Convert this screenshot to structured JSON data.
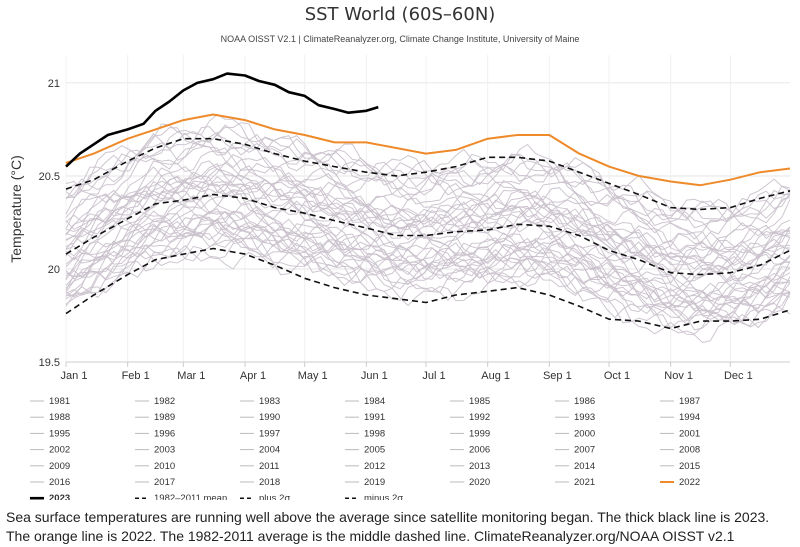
{
  "chart_data": {
    "type": "line",
    "title": "SST World (60S–60N)",
    "subtitle": "NOAA OISST V2.1 | ClimateReanalyzer.org, Climate Change Institute, University of Maine",
    "xlabel": "",
    "ylabel": "Temperature (°C)",
    "ylim": [
      19.5,
      21.15
    ],
    "yticks": [
      "19.5",
      "20",
      "20.5",
      "21"
    ],
    "ytick_values": [
      19.5,
      20,
      20.5,
      21
    ],
    "xlim": [
      1,
      365
    ],
    "xticks": [
      "Jan 1",
      "Feb 1",
      "Mar 1",
      "Apr 1",
      "May 1",
      "Jun 1",
      "Jul 1",
      "Aug 1",
      "Sep 1",
      "Oct 1",
      "Nov 1",
      "Dec 1"
    ],
    "xtick_days": [
      1,
      32,
      60,
      91,
      121,
      152,
      182,
      213,
      244,
      274,
      305,
      335
    ],
    "grid": "horizontal",
    "background_years": [
      "1981",
      "1982",
      "1983",
      "1984",
      "1985",
      "1986",
      "1987",
      "1988",
      "1989",
      "1990",
      "1991",
      "1992",
      "1993",
      "1994",
      "1995",
      "1996",
      "1997",
      "1998",
      "1999",
      "2000",
      "2001",
      "2002",
      "2003",
      "2004",
      "2005",
      "2006",
      "2007",
      "2008",
      "2009",
      "2010",
      "2011",
      "2012",
      "2013",
      "2014",
      "2015",
      "2016",
      "2017",
      "2018",
      "2019",
      "2020",
      "2021"
    ],
    "background_offsets": [
      -0.3,
      -0.28,
      -0.26,
      -0.22,
      -0.25,
      -0.2,
      -0.18,
      -0.16,
      -0.2,
      -0.14,
      -0.15,
      -0.17,
      -0.12,
      -0.13,
      -0.1,
      -0.11,
      -0.03,
      0.02,
      -0.08,
      -0.07,
      0.0,
      0.05,
      0.07,
      0.06,
      0.09,
      0.08,
      0.05,
      0.06,
      0.12,
      0.16,
      0.1,
      0.14,
      0.18,
      0.22,
      0.28,
      0.35,
      0.3,
      0.27,
      0.33,
      0.36,
      0.3
    ],
    "series": [
      {
        "name": "1982-2011 mean",
        "style": "dashed",
        "x": [
          1,
          15,
          32,
          46,
          60,
          75,
          91,
          106,
          121,
          136,
          152,
          167,
          182,
          197,
          213,
          228,
          244,
          259,
          274,
          289,
          305,
          320,
          335,
          350,
          365
        ],
        "values": [
          20.08,
          20.17,
          20.27,
          20.35,
          20.37,
          20.4,
          20.38,
          20.33,
          20.3,
          20.26,
          20.22,
          20.18,
          20.18,
          20.2,
          20.21,
          20.24,
          20.23,
          20.18,
          20.1,
          20.05,
          19.98,
          19.97,
          19.98,
          20.02,
          20.1
        ]
      },
      {
        "name": "plus 2σ",
        "style": "dashed",
        "x": [
          1,
          15,
          32,
          46,
          60,
          75,
          91,
          106,
          121,
          136,
          152,
          167,
          182,
          197,
          213,
          228,
          244,
          259,
          274,
          289,
          305,
          320,
          335,
          350,
          365
        ],
        "values": [
          20.43,
          20.48,
          20.58,
          20.65,
          20.7,
          20.7,
          20.67,
          20.62,
          20.58,
          20.55,
          20.52,
          20.5,
          20.52,
          20.55,
          20.6,
          20.6,
          20.58,
          20.52,
          20.46,
          20.4,
          20.33,
          20.32,
          20.33,
          20.38,
          20.42
        ]
      },
      {
        "name": "minus 2σ",
        "style": "dashed",
        "x": [
          1,
          15,
          32,
          46,
          60,
          75,
          91,
          106,
          121,
          136,
          152,
          167,
          182,
          197,
          213,
          228,
          244,
          259,
          274,
          289,
          305,
          320,
          335,
          350,
          365
        ],
        "values": [
          19.76,
          19.86,
          19.97,
          20.05,
          20.08,
          20.11,
          20.08,
          20.02,
          19.95,
          19.9,
          19.86,
          19.84,
          19.82,
          19.86,
          19.88,
          19.9,
          19.86,
          19.8,
          19.73,
          19.72,
          19.68,
          19.72,
          19.72,
          19.73,
          19.78
        ]
      },
      {
        "name": "2022",
        "color": "#ee8a2a",
        "x": [
          1,
          15,
          32,
          46,
          60,
          75,
          91,
          106,
          121,
          136,
          152,
          167,
          182,
          197,
          213,
          228,
          244,
          259,
          274,
          289,
          305,
          320,
          335,
          350,
          365
        ],
        "values": [
          20.57,
          20.62,
          20.7,
          20.75,
          20.8,
          20.83,
          20.8,
          20.75,
          20.72,
          20.68,
          20.68,
          20.65,
          20.62,
          20.64,
          20.7,
          20.72,
          20.72,
          20.62,
          20.55,
          20.5,
          20.47,
          20.45,
          20.48,
          20.52,
          20.54
        ]
      },
      {
        "name": "2023",
        "color": "#000000",
        "x": [
          1,
          8,
          15,
          22,
          32,
          40,
          46,
          53,
          60,
          67,
          75,
          82,
          91,
          98,
          106,
          113,
          121,
          128,
          136,
          143,
          152,
          158
        ],
        "values": [
          20.55,
          20.62,
          20.67,
          20.72,
          20.75,
          20.78,
          20.85,
          20.9,
          20.96,
          21.0,
          21.02,
          21.05,
          21.04,
          21.01,
          20.99,
          20.95,
          20.93,
          20.88,
          20.86,
          20.84,
          20.85,
          20.87
        ]
      }
    ],
    "legend": {
      "year_labels": [
        "1981",
        "1982",
        "1983",
        "1984",
        "1985",
        "1986",
        "1987",
        "1988",
        "1989",
        "1990",
        "1991",
        "1992",
        "1993",
        "1994",
        "1995",
        "1996",
        "1997",
        "1998",
        "1999",
        "2000",
        "2001",
        "2002",
        "2003",
        "2004",
        "2005",
        "2006",
        "2007",
        "2008",
        "2009",
        "2010",
        "2011",
        "2012",
        "2013",
        "2014",
        "2015",
        "2016",
        "2017",
        "2018",
        "2019",
        "2020",
        "2021",
        "2022",
        "2023"
      ],
      "special_labels": [
        "1982–2011 mean",
        "plus 2σ",
        "minus 2σ"
      ],
      "placement": "bottom"
    }
  },
  "caption": {
    "text": "Sea surface temperatures are running well above the average since satellite monitoring began. The thick black line is 2023. The orange line is 2022. The 1982-2011 average is the middle dashed line. ClimateReanalyzer.org/NOAA OISST v2.1"
  },
  "colors": {
    "year_line": "#c9c0cb",
    "grid": "#e6e6e6",
    "axis": "#cccccc",
    "orange": "#ee8a2a",
    "black": "#000000"
  }
}
